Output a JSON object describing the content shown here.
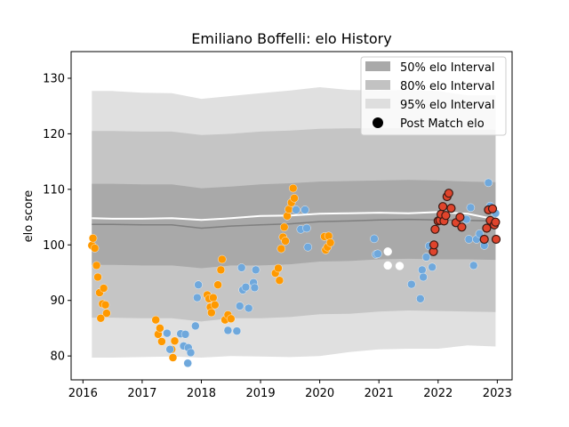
{
  "chart_data": {
    "type": "scatter",
    "title": "Emiliano Boffelli: elo History",
    "xlabel": "",
    "ylabel": "elo score",
    "xlim": [
      2015.8,
      2023.25
    ],
    "ylim": [
      75.7,
      134.8
    ],
    "x_ticks": [
      2016,
      2017,
      2018,
      2019,
      2020,
      2021,
      2022,
      2023
    ],
    "x_tick_labels": [
      "2016",
      "2017",
      "2018",
      "2019",
      "2020",
      "2021",
      "2022",
      "2023"
    ],
    "y_ticks": [
      80,
      90,
      100,
      110,
      120,
      130
    ],
    "y_tick_labels": [
      "80",
      "90",
      "100",
      "110",
      "120",
      "130"
    ],
    "grid": false,
    "legend_position": "top-right",
    "legend": [
      {
        "label": "50% elo Interval",
        "kind": "band",
        "color": "#a9a9a9"
      },
      {
        "label": "80% elo Interval",
        "kind": "band",
        "color": "#c2c2c2"
      },
      {
        "label": "95% elo Interval",
        "kind": "band",
        "color": "#dedede"
      },
      {
        "label": "Post Match elo",
        "kind": "marker",
        "color": "#000000"
      }
    ],
    "colors": {
      "band50": "#a9a9a9",
      "band80": "#c5c5c5",
      "band95": "#e0e0e0",
      "median": "#7f7f7f",
      "mean": "#ffffff",
      "orange": "#ff9900",
      "blue": "#6fa8dc",
      "red": "#e0442c"
    },
    "bands": {
      "x": [
        2016.15,
        2016.5,
        2017.0,
        2017.5,
        2018.0,
        2018.5,
        2019.0,
        2019.5,
        2020.0,
        2020.5,
        2021.0,
        2021.5,
        2022.0,
        2022.5,
        2022.97
      ],
      "center": [
        103.7,
        103.7,
        103.6,
        103.6,
        103.0,
        103.4,
        103.6,
        103.8,
        104.2,
        104.3,
        104.5,
        104.6,
        104.5,
        104.4,
        104.3
      ],
      "mean": [
        104.8,
        104.7,
        104.7,
        104.8,
        104.5,
        104.8,
        105.2,
        105.3,
        105.6,
        105.7,
        105.8,
        105.7,
        105.9,
        105.6,
        104.6
      ],
      "half50": [
        7.3,
        7.3,
        7.3,
        7.3,
        7.2,
        7.1,
        7.3,
        7.3,
        7.2,
        7.2,
        7.1,
        7.1,
        7.1,
        7.0,
        7.0
      ],
      "half80": [
        16.8,
        16.8,
        16.8,
        16.8,
        16.8,
        16.6,
        16.8,
        16.8,
        16.7,
        16.7,
        16.5,
        16.4,
        16.4,
        16.4,
        16.4
      ],
      "half95": [
        24.0,
        24.0,
        23.8,
        23.7,
        23.3,
        23.4,
        23.7,
        24.0,
        24.2,
        23.6,
        23.3,
        23.3,
        23.2,
        22.5,
        22.6
      ]
    },
    "series": [
      {
        "color_key": "orange",
        "points": [
          [
            2016.15,
            99.9
          ],
          [
            2016.17,
            101.2
          ],
          [
            2016.2,
            99.4
          ],
          [
            2016.23,
            96.3
          ],
          [
            2016.25,
            94.2
          ],
          [
            2016.28,
            91.4
          ],
          [
            2016.3,
            86.8
          ],
          [
            2016.33,
            89.4
          ],
          [
            2016.35,
            92.2
          ],
          [
            2016.38,
            89.2
          ],
          [
            2016.4,
            87.7
          ],
          [
            2017.23,
            86.5
          ],
          [
            2017.27,
            83.9
          ],
          [
            2017.3,
            85.0
          ],
          [
            2017.33,
            82.6
          ],
          [
            2017.5,
            81.2
          ],
          [
            2017.52,
            79.7
          ],
          [
            2017.55,
            82.7
          ],
          [
            2018.1,
            91.0
          ],
          [
            2018.13,
            90.3
          ],
          [
            2018.15,
            88.8
          ],
          [
            2018.17,
            87.8
          ],
          [
            2018.2,
            90.5
          ],
          [
            2018.23,
            89.2
          ],
          [
            2018.28,
            92.8
          ],
          [
            2018.33,
            95.5
          ],
          [
            2018.35,
            97.4
          ],
          [
            2018.4,
            86.5
          ],
          [
            2018.45,
            87.4
          ],
          [
            2018.5,
            86.7
          ],
          [
            2019.25,
            94.9
          ],
          [
            2019.3,
            95.8
          ],
          [
            2019.32,
            93.6
          ],
          [
            2019.35,
            99.3
          ],
          [
            2019.38,
            101.4
          ],
          [
            2019.42,
            100.7
          ],
          [
            2019.4,
            103.2
          ],
          [
            2019.45,
            105.2
          ],
          [
            2019.48,
            106.4
          ],
          [
            2019.52,
            107.6
          ],
          [
            2019.55,
            110.2
          ],
          [
            2019.57,
            108.4
          ],
          [
            2020.08,
            101.5
          ],
          [
            2020.1,
            99.1
          ],
          [
            2020.13,
            99.6
          ],
          [
            2020.15,
            101.6
          ],
          [
            2020.18,
            100.4
          ]
        ]
      },
      {
        "color_key": "blue",
        "points": [
          [
            2017.42,
            84.1
          ],
          [
            2017.47,
            81.2
          ],
          [
            2017.65,
            84.0
          ],
          [
            2017.7,
            81.8
          ],
          [
            2017.73,
            83.9
          ],
          [
            2017.78,
            81.5
          ],
          [
            2017.82,
            80.6
          ],
          [
            2017.77,
            78.7
          ],
          [
            2017.9,
            85.4
          ],
          [
            2017.93,
            90.5
          ],
          [
            2017.95,
            92.8
          ],
          [
            2018.45,
            84.6
          ],
          [
            2018.6,
            84.5
          ],
          [
            2018.65,
            89.0
          ],
          [
            2018.68,
            95.9
          ],
          [
            2018.7,
            91.9
          ],
          [
            2018.75,
            92.4
          ],
          [
            2018.8,
            88.6
          ],
          [
            2018.88,
            93.2
          ],
          [
            2018.9,
            92.3
          ],
          [
            2018.92,
            95.5
          ],
          [
            2019.6,
            106.3
          ],
          [
            2019.68,
            102.8
          ],
          [
            2019.75,
            106.3
          ],
          [
            2019.78,
            103.0
          ],
          [
            2019.8,
            99.6
          ],
          [
            2020.92,
            101.1
          ],
          [
            2020.95,
            98.3
          ],
          [
            2020.98,
            98.4
          ],
          [
            2021.55,
            92.9
          ],
          [
            2021.7,
            90.3
          ],
          [
            2021.73,
            95.5
          ],
          [
            2021.75,
            94.2
          ],
          [
            2021.8,
            97.8
          ],
          [
            2021.85,
            99.8
          ],
          [
            2021.9,
            96.0
          ],
          [
            2022.48,
            104.6
          ],
          [
            2022.52,
            101.0
          ],
          [
            2022.55,
            106.7
          ],
          [
            2022.6,
            96.3
          ],
          [
            2022.65,
            101.0
          ],
          [
            2022.7,
            102.0
          ],
          [
            2022.78,
            99.9
          ],
          [
            2022.85,
            111.2
          ],
          [
            2022.88,
            107.0
          ],
          [
            2022.97,
            105.7
          ]
        ]
      },
      {
        "color_key": "mean",
        "points": [
          [
            2021.15,
            98.8
          ],
          [
            2021.15,
            96.3
          ],
          [
            2021.35,
            96.2
          ]
        ]
      },
      {
        "color_key": "red",
        "points": [
          [
            2021.92,
            98.8
          ],
          [
            2021.93,
            100.0
          ],
          [
            2021.95,
            102.8
          ],
          [
            2022.0,
            104.3
          ],
          [
            2022.03,
            104.4
          ],
          [
            2022.05,
            105.5
          ],
          [
            2022.08,
            106.9
          ],
          [
            2022.1,
            104.3
          ],
          [
            2022.13,
            105.3
          ],
          [
            2022.15,
            108.7
          ],
          [
            2022.18,
            109.3
          ],
          [
            2022.22,
            106.6
          ],
          [
            2022.3,
            104.0
          ],
          [
            2022.37,
            105.0
          ],
          [
            2022.4,
            103.2
          ],
          [
            2022.78,
            101.0
          ],
          [
            2022.82,
            103.0
          ],
          [
            2022.85,
            106.3
          ],
          [
            2022.88,
            104.4
          ],
          [
            2022.92,
            106.5
          ],
          [
            2022.95,
            103.6
          ],
          [
            2022.98,
            101.0
          ],
          [
            2022.97,
            104.1
          ]
        ]
      }
    ]
  }
}
